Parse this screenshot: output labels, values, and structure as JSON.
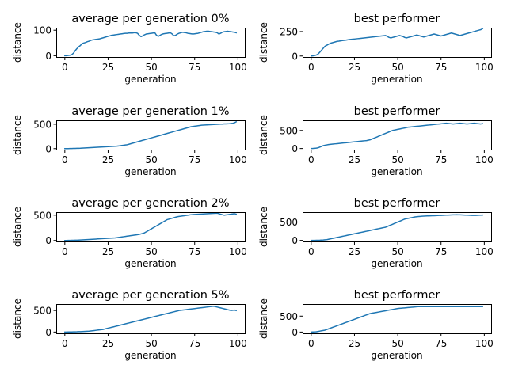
{
  "figure": {
    "line_color": "#1f77b4"
  },
  "chart_data": [
    {
      "type": "line",
      "title": "average per generation 0%",
      "xlabel": "generation",
      "ylabel": "distance",
      "xlim": [
        -4.95,
        103.95
      ],
      "ylim": [
        -5,
        110
      ],
      "xticks": [
        0,
        25,
        50,
        75,
        100
      ],
      "yticks": [
        0,
        100
      ],
      "grid": false,
      "y": [
        0,
        0,
        1,
        2,
        4,
        10,
        20,
        28,
        35,
        40,
        48,
        50,
        52,
        55,
        57,
        60,
        62,
        63,
        64,
        65,
        66,
        68,
        70,
        72,
        74,
        76,
        78,
        80,
        81,
        82,
        83,
        84,
        85,
        86,
        87,
        88,
        88,
        89,
        89,
        89,
        90,
        90,
        88,
        80,
        75,
        78,
        82,
        85,
        86,
        87,
        88,
        89,
        90,
        80,
        76,
        80,
        84,
        86,
        87,
        88,
        89,
        90,
        85,
        78,
        80,
        85,
        88,
        90,
        92,
        91,
        90,
        88,
        87,
        86,
        85,
        86,
        87,
        88,
        90,
        92,
        94,
        95,
        96,
        96,
        95,
        94,
        93,
        92,
        90,
        85,
        88,
        92,
        94,
        95,
        96,
        95,
        94,
        93,
        92,
        90
      ]
    },
    {
      "type": "line",
      "title": "best performer",
      "xlabel": "generation",
      "ylabel": "distance",
      "xlim": [
        -4.95,
        103.95
      ],
      "ylim": [
        -10,
        290
      ],
      "xticks": [
        0,
        25,
        50,
        75,
        100
      ],
      "yticks": [
        0,
        250
      ],
      "grid": false,
      "y": [
        0,
        2,
        5,
        10,
        20,
        40,
        60,
        80,
        100,
        110,
        120,
        130,
        135,
        140,
        145,
        150,
        152,
        155,
        158,
        160,
        162,
        165,
        168,
        170,
        172,
        174,
        176,
        178,
        180,
        182,
        184,
        186,
        188,
        190,
        192,
        194,
        196,
        198,
        200,
        202,
        204,
        206,
        208,
        210,
        200,
        190,
        185,
        190,
        195,
        200,
        205,
        210,
        205,
        200,
        190,
        185,
        190,
        195,
        200,
        205,
        210,
        215,
        210,
        205,
        200,
        195,
        200,
        205,
        210,
        215,
        220,
        225,
        220,
        215,
        210,
        205,
        210,
        215,
        220,
        225,
        230,
        235,
        230,
        225,
        220,
        215,
        210,
        215,
        220,
        225,
        230,
        235,
        240,
        245,
        250,
        255,
        260,
        265,
        270,
        280
      ]
    },
    {
      "type": "line",
      "title": "average per generation 1%",
      "xlabel": "generation",
      "ylabel": "distance",
      "xlim": [
        -4.95,
        103.95
      ],
      "ylim": [
        -20,
        580
      ],
      "xticks": [
        0,
        25,
        50,
        75,
        100
      ],
      "yticks": [
        0,
        500
      ],
      "grid": false,
      "y": [
        0,
        0,
        1,
        2,
        3,
        4,
        5,
        6,
        7,
        8,
        10,
        12,
        14,
        16,
        18,
        20,
        22,
        24,
        26,
        28,
        30,
        32,
        34,
        36,
        38,
        40,
        42,
        44,
        46,
        48,
        50,
        55,
        60,
        65,
        70,
        75,
        80,
        90,
        100,
        110,
        120,
        130,
        140,
        150,
        160,
        170,
        180,
        190,
        200,
        210,
        220,
        230,
        240,
        250,
        260,
        270,
        280,
        290,
        300,
        310,
        320,
        330,
        340,
        350,
        360,
        370,
        380,
        390,
        400,
        410,
        420,
        430,
        440,
        450,
        455,
        460,
        465,
        470,
        475,
        480,
        482,
        484,
        486,
        488,
        490,
        492,
        494,
        496,
        498,
        500,
        502,
        504,
        506,
        508,
        510,
        512,
        515,
        520,
        530,
        550
      ]
    },
    {
      "type": "line",
      "title": "best performer",
      "xlabel": "generation",
      "ylabel": "distance",
      "xlim": [
        -4.95,
        103.95
      ],
      "ylim": [
        -30,
        780
      ],
      "xticks": [
        0,
        25,
        50,
        75,
        100
      ],
      "yticks": [
        0,
        500
      ],
      "grid": false,
      "y": [
        0,
        2,
        5,
        10,
        20,
        40,
        60,
        80,
        90,
        100,
        110,
        115,
        120,
        125,
        130,
        135,
        140,
        145,
        150,
        155,
        160,
        165,
        170,
        175,
        180,
        185,
        190,
        195,
        200,
        205,
        210,
        215,
        220,
        230,
        240,
        260,
        280,
        300,
        320,
        340,
        360,
        380,
        400,
        420,
        440,
        460,
        480,
        500,
        510,
        520,
        530,
        540,
        550,
        560,
        570,
        580,
        590,
        595,
        600,
        605,
        610,
        615,
        620,
        625,
        630,
        635,
        640,
        645,
        650,
        655,
        660,
        665,
        670,
        675,
        680,
        685,
        690,
        695,
        700,
        695,
        690,
        685,
        680,
        685,
        690,
        695,
        700,
        695,
        690,
        685,
        680,
        685,
        690,
        695,
        700,
        695,
        690,
        685,
        680,
        690
      ]
    },
    {
      "type": "line",
      "title": "average per generation 2%",
      "xlabel": "generation",
      "ylabel": "distance",
      "xlim": [
        -4.95,
        103.95
      ],
      "ylim": [
        -20,
        560
      ],
      "xticks": [
        0,
        25,
        50,
        75,
        100
      ],
      "yticks": [
        0,
        500
      ],
      "grid": false,
      "y": [
        0,
        0,
        1,
        2,
        3,
        4,
        5,
        6,
        8,
        10,
        12,
        14,
        16,
        18,
        20,
        22,
        24,
        26,
        28,
        30,
        32,
        34,
        36,
        38,
        40,
        42,
        44,
        46,
        48,
        50,
        55,
        60,
        65,
        70,
        75,
        80,
        85,
        90,
        95,
        100,
        105,
        110,
        115,
        120,
        130,
        140,
        150,
        170,
        190,
        210,
        230,
        250,
        270,
        290,
        310,
        330,
        350,
        370,
        390,
        410,
        420,
        430,
        440,
        450,
        460,
        470,
        475,
        480,
        485,
        490,
        495,
        500,
        505,
        510,
        512,
        514,
        516,
        518,
        520,
        522,
        524,
        526,
        528,
        530,
        532,
        534,
        536,
        538,
        540,
        530,
        520,
        510,
        500,
        505,
        510,
        515,
        520,
        525,
        530,
        520
      ]
    },
    {
      "type": "line",
      "title": "best performer",
      "xlabel": "generation",
      "ylabel": "distance",
      "xlim": [
        -4.95,
        103.95
      ],
      "ylim": [
        -30,
        770
      ],
      "xticks": [
        0,
        25,
        50,
        75,
        100
      ],
      "yticks": [
        0,
        500
      ],
      "grid": false,
      "y": [
        0,
        0,
        1,
        2,
        3,
        5,
        8,
        10,
        15,
        20,
        30,
        40,
        50,
        60,
        70,
        80,
        90,
        100,
        110,
        120,
        130,
        140,
        150,
        160,
        170,
        180,
        190,
        200,
        210,
        220,
        230,
        240,
        250,
        260,
        270,
        280,
        290,
        300,
        310,
        320,
        330,
        340,
        350,
        360,
        380,
        400,
        420,
        440,
        460,
        480,
        500,
        520,
        540,
        560,
        580,
        590,
        600,
        610,
        620,
        630,
        640,
        645,
        650,
        655,
        660,
        662,
        664,
        666,
        668,
        670,
        672,
        674,
        676,
        678,
        680,
        682,
        684,
        686,
        688,
        690,
        692,
        694,
        696,
        698,
        700,
        698,
        696,
        694,
        692,
        690,
        688,
        686,
        684,
        682,
        680,
        682,
        684,
        686,
        688,
        690
      ]
    },
    {
      "type": "line",
      "title": "average per generation 5%",
      "xlabel": "generation",
      "ylabel": "distance",
      "xlim": [
        -4.95,
        103.95
      ],
      "ylim": [
        -30,
        650
      ],
      "xticks": [
        0,
        25,
        50,
        75,
        100
      ],
      "yticks": [
        0,
        500
      ],
      "grid": false,
      "y": [
        0,
        0,
        1,
        2,
        3,
        4,
        5,
        6,
        8,
        10,
        12,
        14,
        16,
        18,
        20,
        25,
        30,
        35,
        40,
        45,
        50,
        55,
        60,
        70,
        80,
        90,
        100,
        110,
        120,
        130,
        140,
        150,
        160,
        170,
        180,
        190,
        200,
        210,
        220,
        230,
        240,
        250,
        260,
        270,
        280,
        290,
        300,
        310,
        320,
        330,
        340,
        350,
        360,
        370,
        380,
        390,
        400,
        410,
        420,
        430,
        440,
        450,
        460,
        470,
        480,
        490,
        500,
        505,
        510,
        515,
        520,
        525,
        530,
        535,
        540,
        545,
        550,
        555,
        560,
        565,
        570,
        575,
        580,
        585,
        590,
        595,
        600,
        590,
        580,
        570,
        560,
        550,
        540,
        530,
        520,
        510,
        500,
        505,
        510,
        500
      ]
    },
    {
      "type": "line",
      "title": "best performer",
      "xlabel": "generation",
      "ylabel": "distance",
      "xlim": [
        -4.95,
        103.95
      ],
      "ylim": [
        -40,
        880
      ],
      "xticks": [
        0,
        25,
        50,
        75,
        100
      ],
      "yticks": [
        0,
        500
      ],
      "grid": false,
      "y": [
        0,
        2,
        5,
        10,
        20,
        30,
        40,
        50,
        60,
        80,
        100,
        120,
        140,
        160,
        180,
        200,
        220,
        240,
        260,
        280,
        300,
        320,
        340,
        360,
        380,
        400,
        420,
        440,
        460,
        480,
        500,
        520,
        540,
        560,
        580,
        590,
        600,
        610,
        620,
        630,
        640,
        650,
        660,
        670,
        680,
        690,
        700,
        710,
        720,
        730,
        740,
        745,
        750,
        755,
        760,
        765,
        770,
        775,
        780,
        785,
        790,
        795,
        800,
        800,
        800,
        800,
        800,
        800,
        800,
        800,
        800,
        800,
        800,
        800,
        800,
        800,
        800,
        800,
        800,
        800,
        800,
        800,
        800,
        800,
        800,
        800,
        800,
        800,
        800,
        800,
        800,
        800,
        800,
        800,
        800,
        800,
        800,
        800,
        800,
        800
      ]
    }
  ]
}
